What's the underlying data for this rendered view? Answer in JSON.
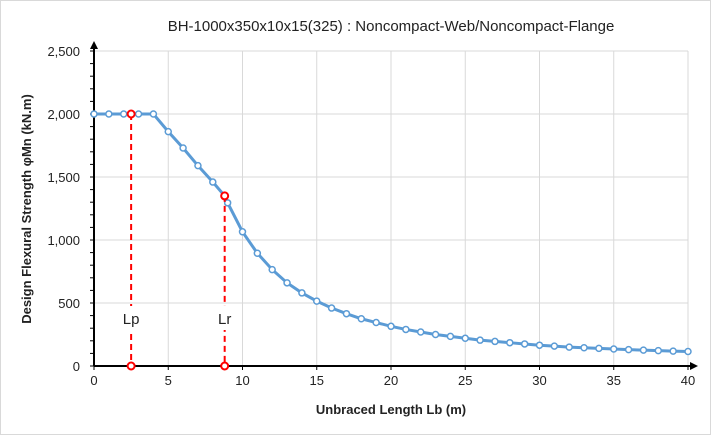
{
  "chart_data": {
    "type": "line",
    "title": "BH-1000x350x10x15(325) : Noncompact-Web/Noncompact-Flange",
    "xlabel": "Unbraced Length  Lb  (m)",
    "ylabel": "Design Flexural Strength  φMn   (kN.m)",
    "xlim": [
      0,
      40
    ],
    "ylim": [
      0,
      2500
    ],
    "xticks": [
      "0",
      "5",
      "10",
      "15",
      "20",
      "25",
      "30",
      "35",
      "40"
    ],
    "yticks": [
      "0",
      "500",
      "1,000",
      "1,500",
      "2,000",
      "2,500"
    ],
    "grid": true,
    "series": [
      {
        "name": "phiMn",
        "color": "#5b9bd5",
        "x": [
          0,
          1,
          2,
          3,
          4,
          5,
          6,
          7,
          8,
          9,
          10,
          11,
          12,
          13,
          14,
          15,
          16,
          17,
          18,
          19,
          20,
          21,
          22,
          23,
          24,
          25,
          26,
          27,
          28,
          29,
          30,
          31,
          32,
          33,
          34,
          35,
          36,
          37,
          38,
          39,
          40
        ],
        "y": [
          2000,
          2000,
          2000,
          2000,
          2000,
          1860,
          1730,
          1590,
          1460,
          1295,
          1065,
          895,
          765,
          660,
          580,
          515,
          460,
          415,
          375,
          345,
          315,
          290,
          270,
          250,
          235,
          220,
          205,
          195,
          185,
          175,
          165,
          158,
          150,
          145,
          140,
          135,
          130,
          126,
          122,
          118,
          115
        ]
      }
    ],
    "markers": [
      {
        "label": "Lp",
        "x": 2.5,
        "y": 2000,
        "color": "#ff0000"
      },
      {
        "label": "Lr",
        "x": 8.8,
        "y": 1350,
        "color": "#ff0000"
      }
    ]
  }
}
